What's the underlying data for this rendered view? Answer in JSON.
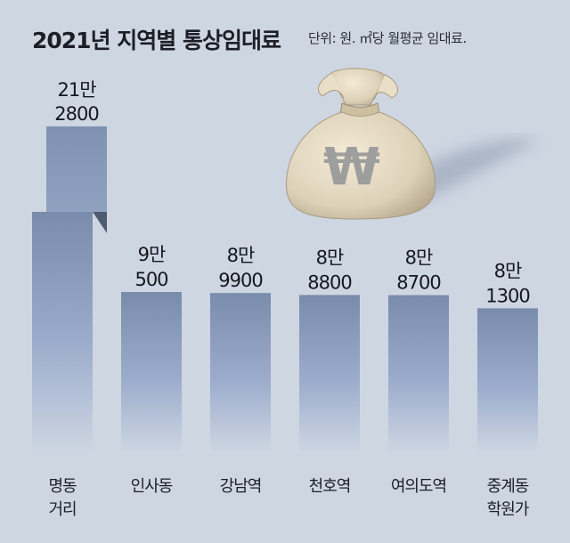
{
  "title": "2021년 지역별 통상임대료",
  "unit_note": "단위: 원. ㎡당 월평균 임대료.",
  "icons": {
    "money_bag": "money-bag-icon",
    "won_symbol": "₩"
  },
  "colors": {
    "background": "#ced6e2",
    "bar_top": "#7a8cab",
    "bar_bottom": "#ccd4e0",
    "text": "#1c1f26"
  },
  "chart_data": {
    "type": "bar",
    "title": "2021년 지역별 통상임대료",
    "xlabel": "",
    "ylabel": "",
    "categories": [
      [
        "명동",
        "거리"
      ],
      [
        "인사동"
      ],
      [
        "강남역"
      ],
      [
        "천호역"
      ],
      [
        "여의도역"
      ],
      [
        "중계동",
        "학원가"
      ]
    ],
    "values": [
      212800,
      90500,
      89900,
      88800,
      88700,
      81300
    ],
    "value_labels": [
      [
        "21만",
        "2800"
      ],
      [
        "9만",
        "500"
      ],
      [
        "8만",
        "9900"
      ],
      [
        "8만",
        "8800"
      ],
      [
        "8만",
        "8700"
      ],
      [
        "8만",
        "1300"
      ]
    ],
    "ylim": [
      0,
      212800
    ],
    "grid": false,
    "broken_axis_first_bar": true
  }
}
